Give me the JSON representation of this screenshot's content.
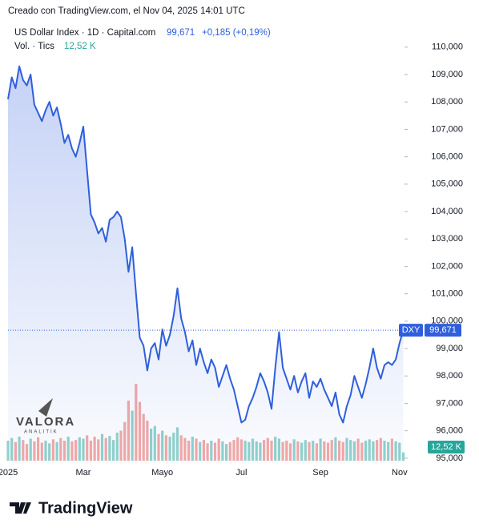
{
  "header": {
    "created": "Creado con TradingView.com, el Nov 04, 2025 14:01 UTC",
    "symbol": "US Dollar Index · 1D · Capital.com",
    "price": "99,671",
    "change": "+0,185 (+0,19%)",
    "volume_title": "Vol. · Tics",
    "volume_value": "12,52 K"
  },
  "chart_data": {
    "type": "area",
    "ticker": "DXY",
    "color": "#2f5fdc",
    "categories": [
      "2025",
      null,
      null,
      null,
      null,
      null,
      null,
      null,
      null,
      null,
      null,
      null,
      null,
      null,
      null,
      null,
      null,
      null,
      null,
      null,
      "Mar",
      null,
      null,
      null,
      null,
      null,
      null,
      null,
      null,
      null,
      null,
      null,
      null,
      null,
      null,
      null,
      null,
      null,
      null,
      null,
      null,
      "Mayo",
      null,
      null,
      null,
      null,
      null,
      null,
      null,
      null,
      null,
      null,
      null,
      null,
      null,
      null,
      null,
      null,
      null,
      null,
      null,
      null,
      "Jul",
      null,
      null,
      null,
      null,
      null,
      null,
      null,
      null,
      null,
      null,
      null,
      null,
      null,
      null,
      null,
      null,
      null,
      null,
      null,
      null,
      "Sep",
      null,
      null,
      null,
      null,
      null,
      null,
      null,
      null,
      null,
      null,
      null,
      null,
      null,
      null,
      null,
      null,
      null,
      null,
      null,
      null,
      "Nov",
      null
    ],
    "values": [
      108.1,
      108.9,
      108.5,
      109.3,
      108.8,
      108.6,
      109.0,
      107.9,
      107.6,
      107.3,
      107.7,
      108.0,
      107.5,
      107.8,
      107.2,
      106.5,
      106.8,
      106.3,
      106.0,
      106.5,
      107.1,
      105.5,
      103.9,
      103.6,
      103.2,
      103.4,
      102.9,
      103.7,
      103.8,
      104.0,
      103.8,
      103.0,
      101.8,
      102.7,
      101.0,
      99.4,
      99.1,
      98.2,
      99.0,
      99.2,
      98.6,
      99.7,
      99.1,
      99.5,
      100.2,
      101.2,
      100.1,
      99.6,
      98.9,
      99.3,
      98.4,
      99.0,
      98.5,
      98.1,
      98.6,
      98.3,
      97.6,
      98.0,
      98.4,
      97.9,
      97.5,
      96.9,
      96.3,
      96.4,
      96.9,
      97.2,
      97.6,
      98.1,
      97.8,
      97.4,
      96.8,
      98.3,
      99.6,
      98.3,
      97.9,
      97.5,
      98.0,
      97.4,
      97.8,
      98.1,
      97.2,
      97.8,
      97.6,
      97.9,
      97.5,
      97.2,
      96.9,
      97.4,
      96.6,
      96.3,
      96.9,
      97.3,
      98.0,
      97.6,
      97.2,
      97.7,
      98.3,
      99.0,
      98.3,
      97.9,
      98.4,
      98.5,
      98.4,
      98.6,
      99.2,
      99.671
    ],
    "ylim": [
      94.82,
      110.96
    ],
    "yticks": [
      {
        "value": 95,
        "label": "95,000"
      },
      {
        "value": 96,
        "label": "96,000"
      },
      {
        "value": 97,
        "label": "97,000"
      },
      {
        "value": 98,
        "label": "98,000"
      },
      {
        "value": 99,
        "label": "99,000"
      },
      {
        "value": 100,
        "label": "100,000"
      },
      {
        "value": 101,
        "label": "101,000"
      },
      {
        "value": 102,
        "label": "102,000"
      },
      {
        "value": 103,
        "label": "103,000"
      },
      {
        "value": 104,
        "label": "104,000"
      },
      {
        "value": 105,
        "label": "105,000"
      },
      {
        "value": 106,
        "label": "106,000"
      },
      {
        "value": 107,
        "label": "107,000"
      },
      {
        "value": 108,
        "label": "108,000"
      },
      {
        "value": 109,
        "label": "109,000"
      },
      {
        "value": 110,
        "label": "110,000"
      }
    ],
    "volume": {
      "up_color": "#92d2cc",
      "down_color": "#f4a9a6",
      "ylim": [
        0,
        120
      ],
      "values": [
        30,
        34,
        28,
        36,
        31,
        25,
        33,
        29,
        35,
        27,
        30,
        26,
        32,
        28,
        34,
        30,
        36,
        29,
        31,
        35,
        33,
        38,
        30,
        36,
        32,
        40,
        34,
        37,
        31,
        42,
        45,
        58,
        90,
        75,
        115,
        88,
        70,
        60,
        48,
        52,
        40,
        45,
        38,
        36,
        42,
        50,
        38,
        34,
        30,
        36,
        33,
        28,
        31,
        26,
        30,
        27,
        33,
        29,
        25,
        28,
        31,
        35,
        32,
        30,
        28,
        33,
        29,
        27,
        31,
        34,
        30,
        36,
        33,
        28,
        30,
        26,
        32,
        29,
        27,
        31,
        28,
        30,
        26,
        33,
        29,
        27,
        31,
        35,
        30,
        28,
        34,
        31,
        29,
        33,
        27,
        30,
        32,
        29,
        31,
        34,
        30,
        28,
        33,
        29,
        27,
        12.52
      ]
    }
  },
  "brand": {
    "watermark": "VALORA",
    "watermark_sub": "ANALITIK",
    "logo": "TradingView"
  }
}
